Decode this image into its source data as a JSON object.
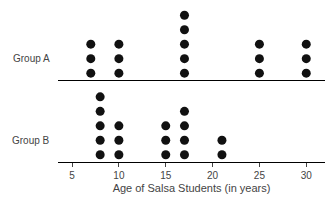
{
  "chart_data": {
    "type": "dot",
    "xlabel": "Age of Salsa Students (in years)",
    "series": [
      {
        "name": "Group A",
        "x": [
          7,
          10,
          17,
          25,
          30
        ],
        "values": [
          3,
          3,
          5,
          3,
          3
        ]
      },
      {
        "name": "Group B",
        "x": [
          8,
          10,
          15,
          17,
          21
        ],
        "values": [
          5,
          3,
          3,
          4,
          2
        ]
      }
    ],
    "color": "#111111",
    "marker": "circle",
    "xlim": [
      3.5,
      32
    ],
    "xticks": [
      5,
      10,
      15,
      20,
      25,
      30
    ],
    "tick_labels": "x",
    "grid": false,
    "legend": false
  }
}
